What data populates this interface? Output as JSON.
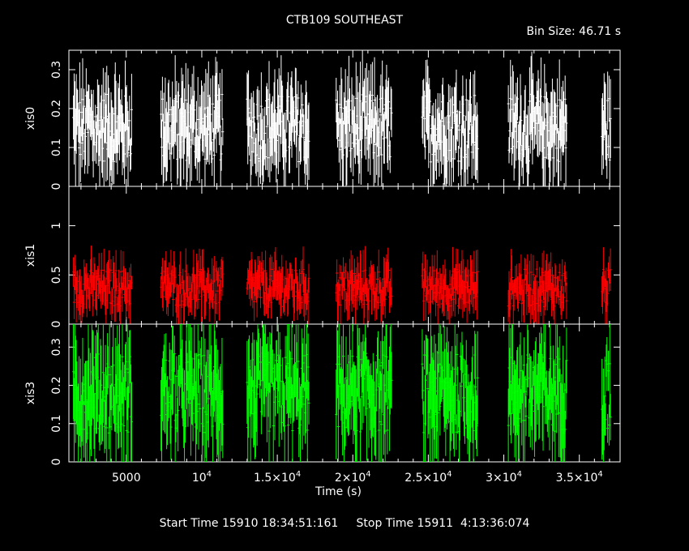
{
  "title": "CTB109 SOUTHEAST",
  "bin_size": "Bin Size: 46.71 s",
  "xlabel": "Time (s)",
  "footer": "Start Time 15910 18:34:51:161     Stop Time 15911  4:13:36:074",
  "colors": {
    "xis0": "#ffffff",
    "xis1": "#ff0000",
    "xis3": "#00ff00",
    "frame": "#ffffff",
    "background": "#000000"
  },
  "chart_data": {
    "type": "scatter",
    "title": "CTB109 SOUTHEAST",
    "xlabel": "Time (s)",
    "xlim": [
      1200,
      37700
    ],
    "x_ticks": [
      {
        "value": 5000,
        "label": "5000"
      },
      {
        "value": 10000,
        "label": "10^4"
      },
      {
        "value": 15000,
        "label": "1.5×10^4"
      },
      {
        "value": 20000,
        "label": "2×10^4"
      },
      {
        "value": 25000,
        "label": "2.5×10^4"
      },
      {
        "value": 30000,
        "label": "3×10^4"
      },
      {
        "value": 35000,
        "label": "3.5×10^4"
      }
    ],
    "observation_windows": [
      [
        1500,
        5400
      ],
      [
        7300,
        11400
      ],
      [
        13000,
        17100
      ],
      [
        18900,
        22600
      ],
      [
        24600,
        28300
      ],
      [
        30300,
        34200
      ],
      [
        36500,
        37100
      ]
    ],
    "panels": [
      {
        "name": "xis0",
        "ylabel": "xis0",
        "ylim": [
          0,
          0.35
        ],
        "yticks": [
          0,
          0.1,
          0.2,
          0.3
        ],
        "typical_rate": [
          0.05,
          0.3
        ],
        "mean_rate": 0.15
      },
      {
        "name": "xis1",
        "ylabel": "xis1",
        "ylim": [
          0,
          1.4
        ],
        "yticks": [
          0,
          0.5,
          1
        ],
        "typical_rate": [
          0.15,
          0.7
        ],
        "mean_rate": 0.37
      },
      {
        "name": "xis3",
        "ylabel": "xis3",
        "ylim": [
          0,
          0.36
        ],
        "yticks": [
          0,
          0.1,
          0.2,
          0.3
        ],
        "typical_rate": [
          0.05,
          0.35
        ],
        "mean_rate": 0.18
      }
    ]
  }
}
